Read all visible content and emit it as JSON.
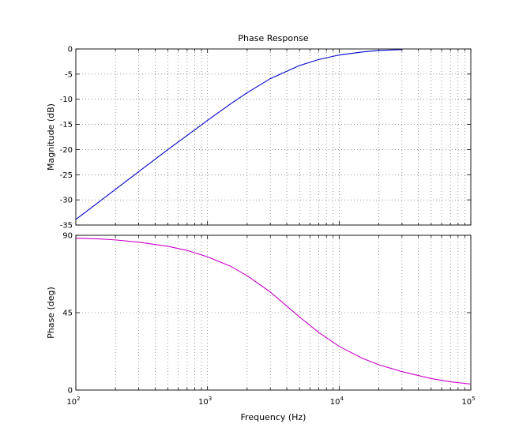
{
  "chart_data": [
    {
      "type": "line",
      "title": "Phase Response",
      "xlabel": "",
      "ylabel": "Magnitude (dB)",
      "xscale": "log",
      "xlim": [
        100,
        100000
      ],
      "ylim": [
        -35,
        0
      ],
      "yticks": [
        0,
        -5,
        -10,
        -15,
        -20,
        -25,
        -30,
        -35
      ],
      "grid": true,
      "x_tick_labels_shown": false,
      "series": [
        {
          "color": "#0000cc",
          "x": [
            100,
            150,
            200,
            300,
            500,
            700,
            1000,
            1500,
            2000,
            3000,
            5000,
            7000,
            10000,
            15000,
            20000,
            30000
          ],
          "y": [
            -33.9,
            -30.4,
            -27.9,
            -24.4,
            -20.0,
            -17.2,
            -14.2,
            -10.9,
            -8.7,
            -5.9,
            -3.3,
            -2.1,
            -1.2,
            -0.6,
            -0.3,
            -0.1
          ]
        }
      ]
    },
    {
      "type": "line",
      "title": "",
      "xlabel": "Frequency  (Hz)",
      "ylabel": "Phase (deg)",
      "xscale": "log",
      "xlim": [
        100,
        100000
      ],
      "ylim": [
        0,
        90
      ],
      "yticks": [
        0,
        45,
        90
      ],
      "grid": true,
      "x_tick_labels": [
        {
          "value": 100,
          "base": "10",
          "exp": "2"
        },
        {
          "value": 1000,
          "base": "10",
          "exp": "3"
        },
        {
          "value": 10000,
          "base": "10",
          "exp": "4"
        },
        {
          "value": 100000,
          "base": "10",
          "exp": "5"
        }
      ],
      "series": [
        {
          "color": "#cc00cc",
          "x": [
            100,
            150,
            200,
            300,
            500,
            700,
            1000,
            1500,
            2000,
            3000,
            5000,
            7000,
            10000,
            15000,
            20000,
            30000,
            50000,
            70000,
            100000
          ],
          "y": [
            88.3,
            87.9,
            87.3,
            86.0,
            83.6,
            81.2,
            77.5,
            72.0,
            66.5,
            57.0,
            42.5,
            33.5,
            25.4,
            18.5,
            14.7,
            10.7,
            6.7,
            4.8,
            3.5
          ]
        }
      ]
    }
  ]
}
